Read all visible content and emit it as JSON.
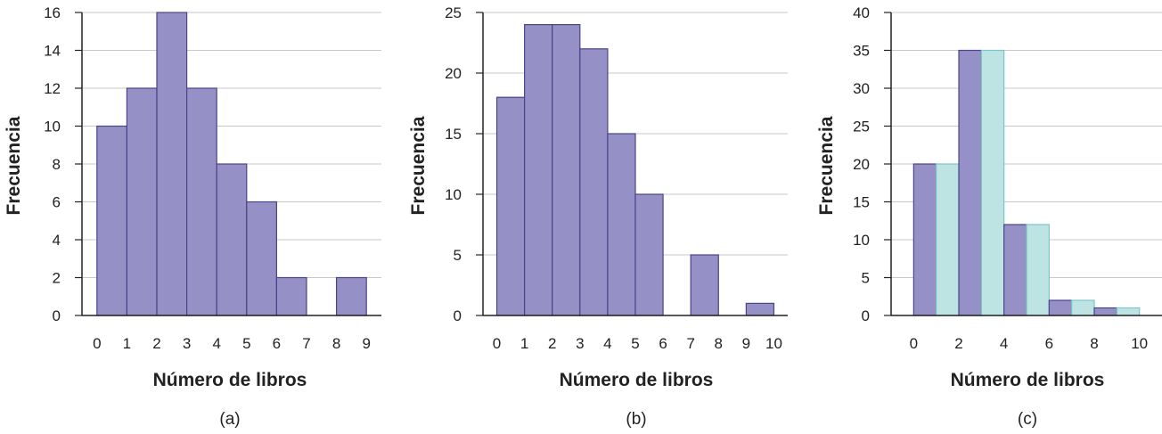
{
  "colors": {
    "bar_fill": "#9590c6",
    "bar_stroke": "#4a4488",
    "bar_alt_fill": "#bde4e3",
    "bar_alt_stroke": "#7cc6c6",
    "grid": "#c8c8c8",
    "axis": "#222222"
  },
  "chart_data": [
    {
      "type": "bar",
      "panel_label": "(a)",
      "xlabel": "Número de libros",
      "ylabel": "Frecuencia",
      "xlim": [
        -0.5,
        9.5
      ],
      "ylim": [
        0,
        16
      ],
      "xticks": [
        0,
        1,
        2,
        3,
        4,
        5,
        6,
        7,
        8,
        9
      ],
      "yticks": [
        0,
        2,
        4,
        6,
        8,
        10,
        12,
        14,
        16
      ],
      "grid": true,
      "bins": [
        {
          "x0": 0,
          "x1": 1,
          "value": 10
        },
        {
          "x0": 1,
          "x1": 2,
          "value": 12
        },
        {
          "x0": 2,
          "x1": 3,
          "value": 16
        },
        {
          "x0": 3,
          "x1": 4,
          "value": 12
        },
        {
          "x0": 4,
          "x1": 5,
          "value": 8
        },
        {
          "x0": 5,
          "x1": 6,
          "value": 6
        },
        {
          "x0": 6,
          "x1": 7,
          "value": 2
        },
        {
          "x0": 8,
          "x1": 9,
          "value": 2
        }
      ]
    },
    {
      "type": "bar",
      "panel_label": "(b)",
      "xlabel": "Número de libros",
      "ylabel": "Frecuencia",
      "xlim": [
        -0.5,
        10.5
      ],
      "ylim": [
        0,
        25
      ],
      "xticks": [
        0,
        1,
        2,
        3,
        4,
        5,
        6,
        7,
        8,
        9,
        10
      ],
      "yticks": [
        0,
        5,
        10,
        15,
        20,
        25
      ],
      "grid": true,
      "bins": [
        {
          "x0": 0,
          "x1": 1,
          "value": 18
        },
        {
          "x0": 1,
          "x1": 2,
          "value": 24
        },
        {
          "x0": 2,
          "x1": 3,
          "value": 24
        },
        {
          "x0": 3,
          "x1": 4,
          "value": 22
        },
        {
          "x0": 4,
          "x1": 5,
          "value": 15
        },
        {
          "x0": 5,
          "x1": 6,
          "value": 10
        },
        {
          "x0": 7,
          "x1": 8,
          "value": 5
        },
        {
          "x0": 9,
          "x1": 10,
          "value": 1
        }
      ]
    },
    {
      "type": "bar",
      "panel_label": "(c)",
      "xlabel": "Número de libros",
      "ylabel": "Frecuencia",
      "xlim": [
        -1,
        11
      ],
      "ylim": [
        0,
        40
      ],
      "xticks": [
        0,
        2,
        4,
        6,
        8,
        10
      ],
      "yticks": [
        0,
        5,
        10,
        15,
        20,
        25,
        30,
        35,
        40
      ],
      "grid": true,
      "bins": [
        {
          "x0": 0,
          "x1": 1,
          "value": 20,
          "shade": "dark"
        },
        {
          "x0": 1,
          "x1": 2,
          "value": 20,
          "shade": "light"
        },
        {
          "x0": 2,
          "x1": 3,
          "value": 35,
          "shade": "dark"
        },
        {
          "x0": 3,
          "x1": 4,
          "value": 35,
          "shade": "light"
        },
        {
          "x0": 4,
          "x1": 5,
          "value": 12,
          "shade": "dark"
        },
        {
          "x0": 5,
          "x1": 6,
          "value": 12,
          "shade": "light"
        },
        {
          "x0": 6,
          "x1": 7,
          "value": 2,
          "shade": "dark"
        },
        {
          "x0": 7,
          "x1": 8,
          "value": 2,
          "shade": "light"
        },
        {
          "x0": 8,
          "x1": 9,
          "value": 1,
          "shade": "dark"
        },
        {
          "x0": 9,
          "x1": 10,
          "value": 1,
          "shade": "light"
        }
      ]
    }
  ]
}
